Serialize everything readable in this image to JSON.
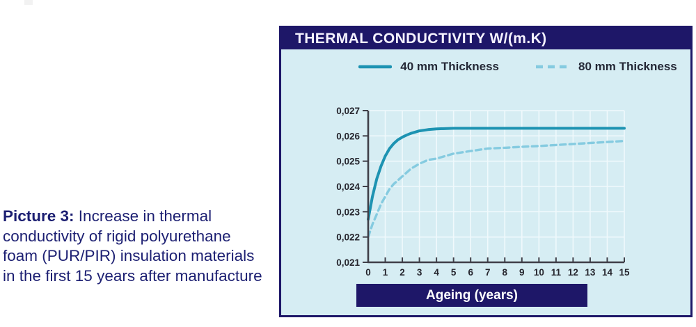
{
  "caption": {
    "label": "Picture 3:",
    "text": " Increase in thermal conductivity of rigid polyurethane foam (PUR/PIR) insulation materials in the first 15 years after manufacture"
  },
  "chart": {
    "title": "THERMAL CONDUCTIVITY W/(m.K)",
    "xlabel": "Ageing (years)"
  },
  "chart_data": {
    "type": "line",
    "title": "THERMAL CONDUCTIVITY W/(m.K)",
    "xlabel": "Ageing (years)",
    "ylabel": "Thermal conductivity W/(m.K)",
    "xlim": [
      0,
      15
    ],
    "ylim": [
      0.021,
      0.027
    ],
    "x_ticks": [
      0,
      1,
      2,
      3,
      4,
      5,
      6,
      7,
      8,
      9,
      10,
      11,
      12,
      13,
      14,
      15
    ],
    "y_ticks": [
      0.021,
      0.022,
      0.023,
      0.024,
      0.025,
      0.026,
      0.027
    ],
    "y_tick_labels": [
      "0,021",
      "0,022",
      "0,023",
      "0,024",
      "0,025",
      "0,026",
      "0,027"
    ],
    "grid": true,
    "legend_position": "top",
    "series": [
      {
        "name": "40 mm Thickness",
        "style": "solid",
        "color": "#1d93b2",
        "points": [
          [
            0,
            0.0227
          ],
          [
            0.25,
            0.0236
          ],
          [
            0.5,
            0.0243
          ],
          [
            0.75,
            0.0248
          ],
          [
            1,
            0.0252
          ],
          [
            1.25,
            0.0255
          ],
          [
            1.5,
            0.0257
          ],
          [
            1.75,
            0.02585
          ],
          [
            2,
            0.02595
          ],
          [
            2.25,
            0.02603
          ],
          [
            2.5,
            0.0261
          ],
          [
            3,
            0.0262
          ],
          [
            3.5,
            0.02625
          ],
          [
            4,
            0.02628
          ],
          [
            5,
            0.0263
          ],
          [
            6,
            0.0263
          ],
          [
            7,
            0.0263
          ],
          [
            8,
            0.0263
          ],
          [
            9,
            0.0263
          ],
          [
            10,
            0.0263
          ],
          [
            11,
            0.0263
          ],
          [
            12,
            0.0263
          ],
          [
            13,
            0.0263
          ],
          [
            14,
            0.0263
          ],
          [
            15,
            0.0263
          ]
        ]
      },
      {
        "name": "80 mm Thickness",
        "style": "dashed",
        "color": "#85cbe0",
        "points": [
          [
            0,
            0.022
          ],
          [
            0.25,
            0.0225
          ],
          [
            0.5,
            0.0229
          ],
          [
            0.75,
            0.0233
          ],
          [
            1,
            0.0236
          ],
          [
            1.25,
            0.0239
          ],
          [
            1.5,
            0.0241
          ],
          [
            2,
            0.0244
          ],
          [
            2.5,
            0.0247
          ],
          [
            3,
            0.0249
          ],
          [
            3.5,
            0.02505
          ],
          [
            4,
            0.0251
          ],
          [
            4.5,
            0.0252
          ],
          [
            5,
            0.0253
          ],
          [
            6,
            0.0254
          ],
          [
            7,
            0.0255
          ],
          [
            8,
            0.02553
          ],
          [
            9,
            0.02557
          ],
          [
            10,
            0.0256
          ],
          [
            11,
            0.02564
          ],
          [
            12,
            0.02568
          ],
          [
            13,
            0.02572
          ],
          [
            14,
            0.02576
          ],
          [
            15,
            0.0258
          ]
        ]
      }
    ],
    "colors": {
      "panel_bg": "#d6edf3",
      "header_bg": "#1e1768",
      "header_text": "#f5f2ff",
      "grid": "#f0f9fc",
      "axis": "#3f3f48",
      "tick_text": "#26262e"
    }
  }
}
